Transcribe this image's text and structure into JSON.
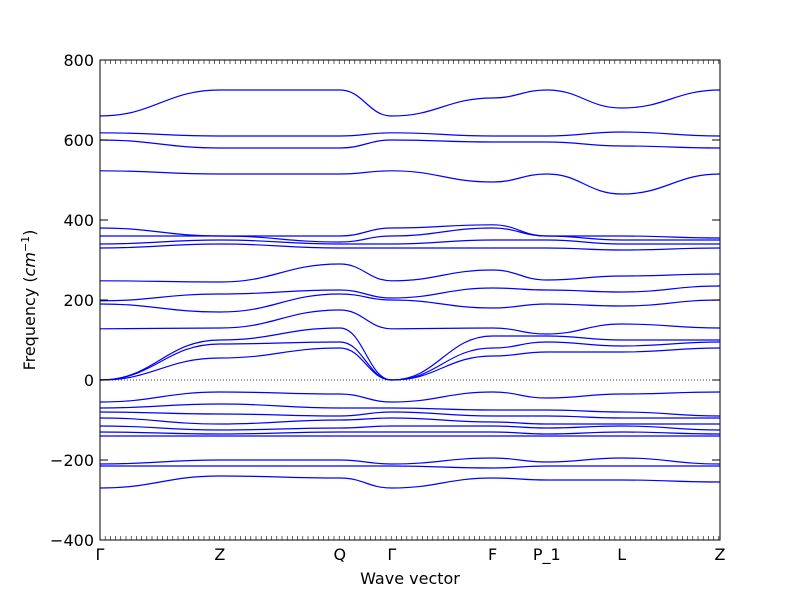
{
  "chart_data": {
    "type": "line",
    "title": "",
    "xlabel": "Wave vector",
    "ylabel_prefix": "Frequency (",
    "ylabel_unit": "cm",
    "ylabel_exp": "−1",
    "ylabel_suffix": ")",
    "ylim": [
      -400,
      800
    ],
    "yticks": [
      -400,
      -200,
      0,
      200,
      400,
      600,
      800
    ],
    "ytick_labels": [
      "−400",
      "−200",
      "0",
      "200",
      "400",
      "600",
      "800"
    ],
    "kpath": [
      {
        "label": "Γ",
        "x": 0.0
      },
      {
        "label": "Z",
        "x": 0.24
      },
      {
        "label": "Q",
        "x": 0.4799
      },
      {
        "label": "Γ",
        "x": 0.5841
      },
      {
        "label": "F",
        "x": 0.7857
      },
      {
        "label": "P_1",
        "x": 0.8943
      },
      {
        "label": "L",
        "x": 1.0441
      },
      {
        "label": "Z",
        "x": 1.2409
      }
    ],
    "xlim": [
      0,
      1.2409
    ],
    "zero_line": true,
    "line_color": "#0000ff",
    "band_frequencies_at_kpoints": [
      [
        0,
        0,
        0,
        128,
        190,
        198,
        248,
        330,
        340,
        360,
        380,
        523,
        600,
        618,
        660
      ],
      [
        55,
        90,
        100,
        130,
        170,
        215,
        245,
        340,
        350,
        360,
        360,
        515,
        580,
        610,
        725
      ],
      [
        80,
        95,
        130,
        175,
        215,
        225,
        290,
        330,
        340,
        345,
        360,
        515,
        580,
        610,
        725
      ],
      [
        0,
        0,
        0,
        128,
        200,
        205,
        248,
        330,
        340,
        360,
        380,
        523,
        600,
        618,
        660
      ],
      [
        60,
        80,
        110,
        130,
        180,
        230,
        275,
        330,
        350,
        380,
        388,
        495,
        595,
        610,
        705
      ],
      [
        70,
        95,
        110,
        115,
        190,
        225,
        250,
        330,
        350,
        360,
        360,
        515,
        595,
        610,
        725
      ],
      [
        70,
        85,
        100,
        140,
        185,
        220,
        260,
        325,
        340,
        350,
        360,
        465,
        585,
        620,
        680
      ],
      [
        80,
        95,
        100,
        130,
        200,
        235,
        265,
        330,
        340,
        350,
        355,
        515,
        580,
        610,
        725
      ]
    ],
    "negative_band_frequencies_at_kpoints": [
      [
        -55,
        -70,
        -80,
        -95,
        -115,
        -130,
        -140,
        -210,
        -215,
        -270
      ],
      [
        -30,
        -60,
        -85,
        -110,
        -125,
        -135,
        -140,
        -200,
        -215,
        -240
      ],
      [
        -35,
        -70,
        -90,
        -100,
        -120,
        -130,
        -140,
        -200,
        -215,
        -245
      ],
      [
        -55,
        -70,
        -80,
        -95,
        -115,
        -130,
        -140,
        -210,
        -215,
        -270
      ],
      [
        -30,
        -75,
        -90,
        -105,
        -115,
        -130,
        -140,
        -195,
        -220,
        -245
      ],
      [
        -45,
        -75,
        -90,
        -110,
        -120,
        -135,
        -140,
        -205,
        -215,
        -250
      ],
      [
        -35,
        -80,
        -95,
        -110,
        -115,
        -130,
        -140,
        -195,
        -215,
        -250
      ],
      [
        -30,
        -90,
        -95,
        -110,
        -125,
        -135,
        -140,
        -210,
        -215,
        -255
      ]
    ]
  }
}
